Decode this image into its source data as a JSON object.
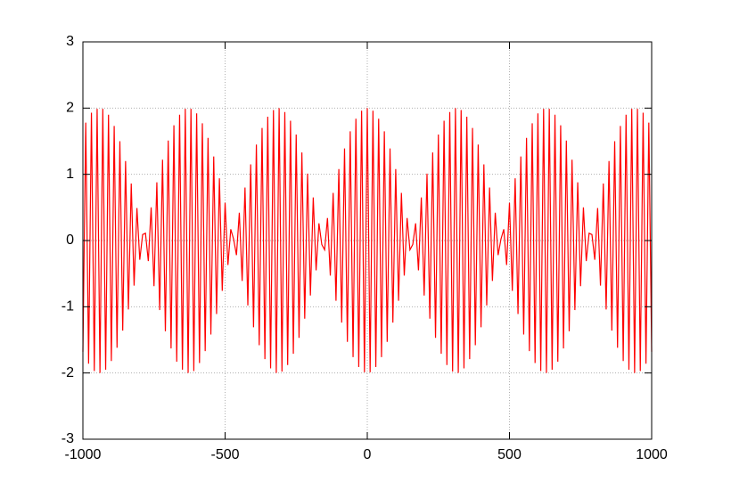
{
  "chart_data": {
    "type": "line",
    "color": "#ff0000",
    "grid": true,
    "xlim": [
      -1000,
      1000
    ],
    "xticks": [
      -1000,
      -500,
      0,
      500,
      1000
    ],
    "ylim": [
      -3,
      3
    ],
    "yticks": [
      -3,
      -2,
      -1,
      0,
      1,
      2,
      3
    ],
    "x": [
      -1000,
      -990,
      -980,
      -970,
      -960,
      -950,
      -940,
      -930,
      -920,
      -910,
      -900,
      -890,
      -880,
      -870,
      -860,
      -850,
      -840,
      -830,
      -820,
      -810,
      -800,
      -790,
      -780,
      -770,
      -760,
      -750,
      -740,
      -730,
      -720,
      -710,
      -700,
      -690,
      -680,
      -670,
      -660,
      -650,
      -640,
      -630,
      -620,
      -610,
      -600,
      -590,
      -580,
      -570,
      -560,
      -550,
      -540,
      -530,
      -520,
      -510,
      -500,
      -490,
      -480,
      -470,
      -460,
      -450,
      -440,
      -430,
      -420,
      -410,
      -400,
      -390,
      -380,
      -370,
      -360,
      -350,
      -340,
      -330,
      -320,
      -310,
      -300,
      -290,
      -280,
      -270,
      -260,
      -250,
      -240,
      -230,
      -220,
      -210,
      -200,
      -190,
      -180,
      -170,
      -160,
      -150,
      -140,
      -130,
      -120,
      -110,
      -100,
      -90,
      -80,
      -70,
      -60,
      -50,
      -40,
      -30,
      -20,
      -10,
      0,
      10,
      20,
      30,
      40,
      50,
      60,
      70,
      80,
      90,
      100,
      110,
      120,
      130,
      140,
      150,
      160,
      170,
      180,
      190,
      200,
      210,
      220,
      230,
      240,
      250,
      260,
      270,
      280,
      290,
      300,
      310,
      320,
      330,
      340,
      350,
      360,
      370,
      380,
      390,
      400,
      410,
      420,
      430,
      440,
      450,
      460,
      470,
      480,
      490,
      500,
      510,
      520,
      530,
      540,
      550,
      560,
      570,
      580,
      590,
      600,
      610,
      620,
      630,
      640,
      650,
      660,
      670,
      680,
      690,
      700,
      710,
      720,
      730,
      740,
      750,
      760,
      770,
      780,
      790,
      800,
      810,
      820,
      830,
      840,
      850,
      860,
      870,
      880,
      890,
      900,
      910,
      920,
      930,
      940,
      950,
      960,
      970,
      980,
      990,
      1000
    ],
    "values": [
      -1.68,
      1.78,
      -1.86,
      1.93,
      -1.97,
      1.99,
      -2.0,
      1.99,
      -1.95,
      1.9,
      -1.82,
      1.73,
      -1.62,
      1.5,
      -1.36,
      1.2,
      -1.04,
      0.86,
      -0.68,
      0.49,
      -0.29,
      0.09,
      0.11,
      -0.31,
      0.5,
      -0.69,
      0.88,
      -1.05,
      1.22,
      -1.37,
      1.51,
      -1.63,
      1.74,
      -1.83,
      1.9,
      -1.95,
      1.99,
      -2.0,
      1.99,
      -1.97,
      1.92,
      -1.85,
      1.77,
      -1.67,
      1.55,
      -1.42,
      1.27,
      -1.11,
      0.94,
      -0.76,
      0.57,
      -0.37,
      0.17,
      0.02,
      -0.22,
      0.42,
      -0.61,
      0.8,
      -0.98,
      1.15,
      -1.31,
      1.45,
      -1.58,
      1.7,
      -1.79,
      1.87,
      -1.93,
      1.97,
      -2.0,
      2.0,
      -1.98,
      1.94,
      -1.88,
      1.81,
      -1.71,
      1.6,
      -1.47,
      1.33,
      -1.18,
      1.01,
      -0.83,
      0.65,
      -0.45,
      0.26,
      -0.06,
      -0.14,
      0.34,
      -0.53,
      0.72,
      -0.91,
      1.08,
      -1.24,
      1.39,
      -1.53,
      1.65,
      -1.76,
      1.84,
      -1.91,
      1.96,
      -1.99,
      2.0,
      -1.99,
      1.96,
      -1.91,
      1.84,
      -1.76,
      1.65,
      -1.53,
      1.39,
      -1.24,
      1.08,
      -0.91,
      0.72,
      -0.53,
      0.34,
      -0.14,
      -0.06,
      0.26,
      -0.45,
      0.65,
      -0.83,
      1.01,
      -1.18,
      1.33,
      -1.47,
      1.6,
      -1.71,
      1.81,
      -1.88,
      1.94,
      -1.98,
      2.0,
      -2.0,
      1.97,
      -1.93,
      1.87,
      -1.79,
      1.7,
      -1.58,
      1.45,
      -1.31,
      1.15,
      -0.98,
      0.8,
      -0.61,
      0.42,
      -0.22,
      0.02,
      0.17,
      -0.37,
      0.57,
      -0.76,
      0.94,
      -1.11,
      1.27,
      -1.42,
      1.55,
      -1.67,
      1.77,
      -1.85,
      1.92,
      -1.97,
      1.99,
      -2.0,
      1.99,
      -1.95,
      1.9,
      -1.83,
      1.74,
      -1.63,
      1.51,
      -1.37,
      1.22,
      -1.05,
      0.88,
      -0.69,
      0.5,
      -0.31,
      0.11,
      0.09,
      -0.29,
      0.49,
      -0.68,
      0.86,
      -1.04,
      1.2,
      -1.36,
      1.5,
      -1.62,
      1.73,
      -1.82,
      1.9,
      -1.95,
      1.99,
      -2.0,
      1.99,
      -1.97,
      1.93,
      -1.86,
      1.78,
      -1.68
    ]
  }
}
